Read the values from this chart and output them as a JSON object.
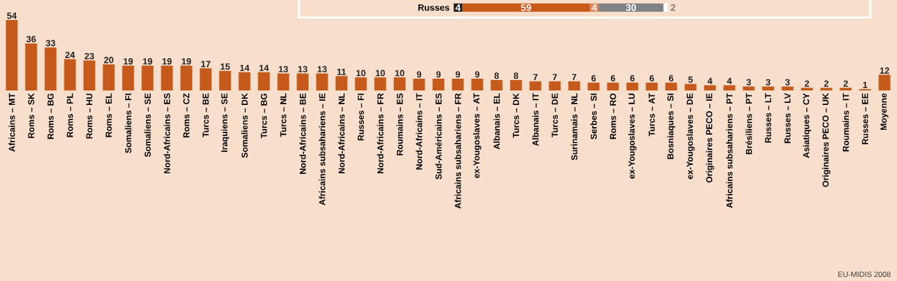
{
  "chart_data": [
    {
      "type": "bar",
      "orientation": "horizontal",
      "stacked": true,
      "categories": [
        "Russes"
      ],
      "series": [
        {
          "color": "#231f20",
          "values": [
            4
          ]
        },
        {
          "color": "#c85a1a",
          "values": [
            59
          ]
        },
        {
          "color": "#dc8a5c",
          "values": [
            4
          ]
        },
        {
          "color": "#808285",
          "values": [
            30
          ]
        },
        {
          "color": "#ffffff",
          "values": [
            2
          ]
        }
      ],
      "data_labels": true
    },
    {
      "type": "bar",
      "color": "#c55a1b",
      "data_labels": true,
      "categories": [
        "Africains – MT",
        "Roms – SK",
        "Roms – BG",
        "Roms – PL",
        "Roms – HU",
        "Roms – EL",
        "Somaliens – FI",
        "Somaliens – SE",
        "Nord-Africains – ES",
        "Roms – CZ",
        "Turcs – BE",
        "Iraquiens – SE",
        "Somaliens – DK",
        "Turcs – BG",
        "Turcs – NL",
        "Nord-Africains – BE",
        "Africains subsahariens – IE",
        "Nord-Africains – NL",
        "Russes – FI",
        "Nord-Africains – FR",
        "Roumains – ES",
        "Nord-Africains – IT",
        "Sud-Américains – ES",
        "Africains subsahariens – FR",
        "ex-Yougoslaves – AT",
        "Albanais – EL",
        "Turcs – DK",
        "Albanais – IT",
        "Turcs – DE",
        "Surinamais – NL",
        "Serbes – SI",
        "Roms – RO",
        "ex-Yougoslaves – LU",
        "Turcs – AT",
        "Bosniaques – SI",
        "ex-Yougoslaves – DE",
        "Originaires PECO – IE",
        "Africains subsahariens – PT",
        "Brésiliens – PT",
        "Russes – LT",
        "Russes – LV",
        "Asiatiques – CY",
        "Originaires PECO – UK",
        "Roumains – IT",
        "Russes – EE",
        "Moyenne"
      ],
      "values": [
        54,
        36,
        33,
        24,
        23,
        20,
        19,
        19,
        19,
        19,
        17,
        15,
        14,
        14,
        13,
        13,
        13,
        11,
        10,
        10,
        10,
        9,
        9,
        9,
        9,
        8,
        8,
        7,
        7,
        7,
        6,
        6,
        6,
        6,
        6,
        5,
        4,
        4,
        3,
        3,
        3,
        2,
        2,
        2,
        1,
        12
      ],
      "annotations": [
        "EU-MIDIS 2008"
      ]
    }
  ]
}
